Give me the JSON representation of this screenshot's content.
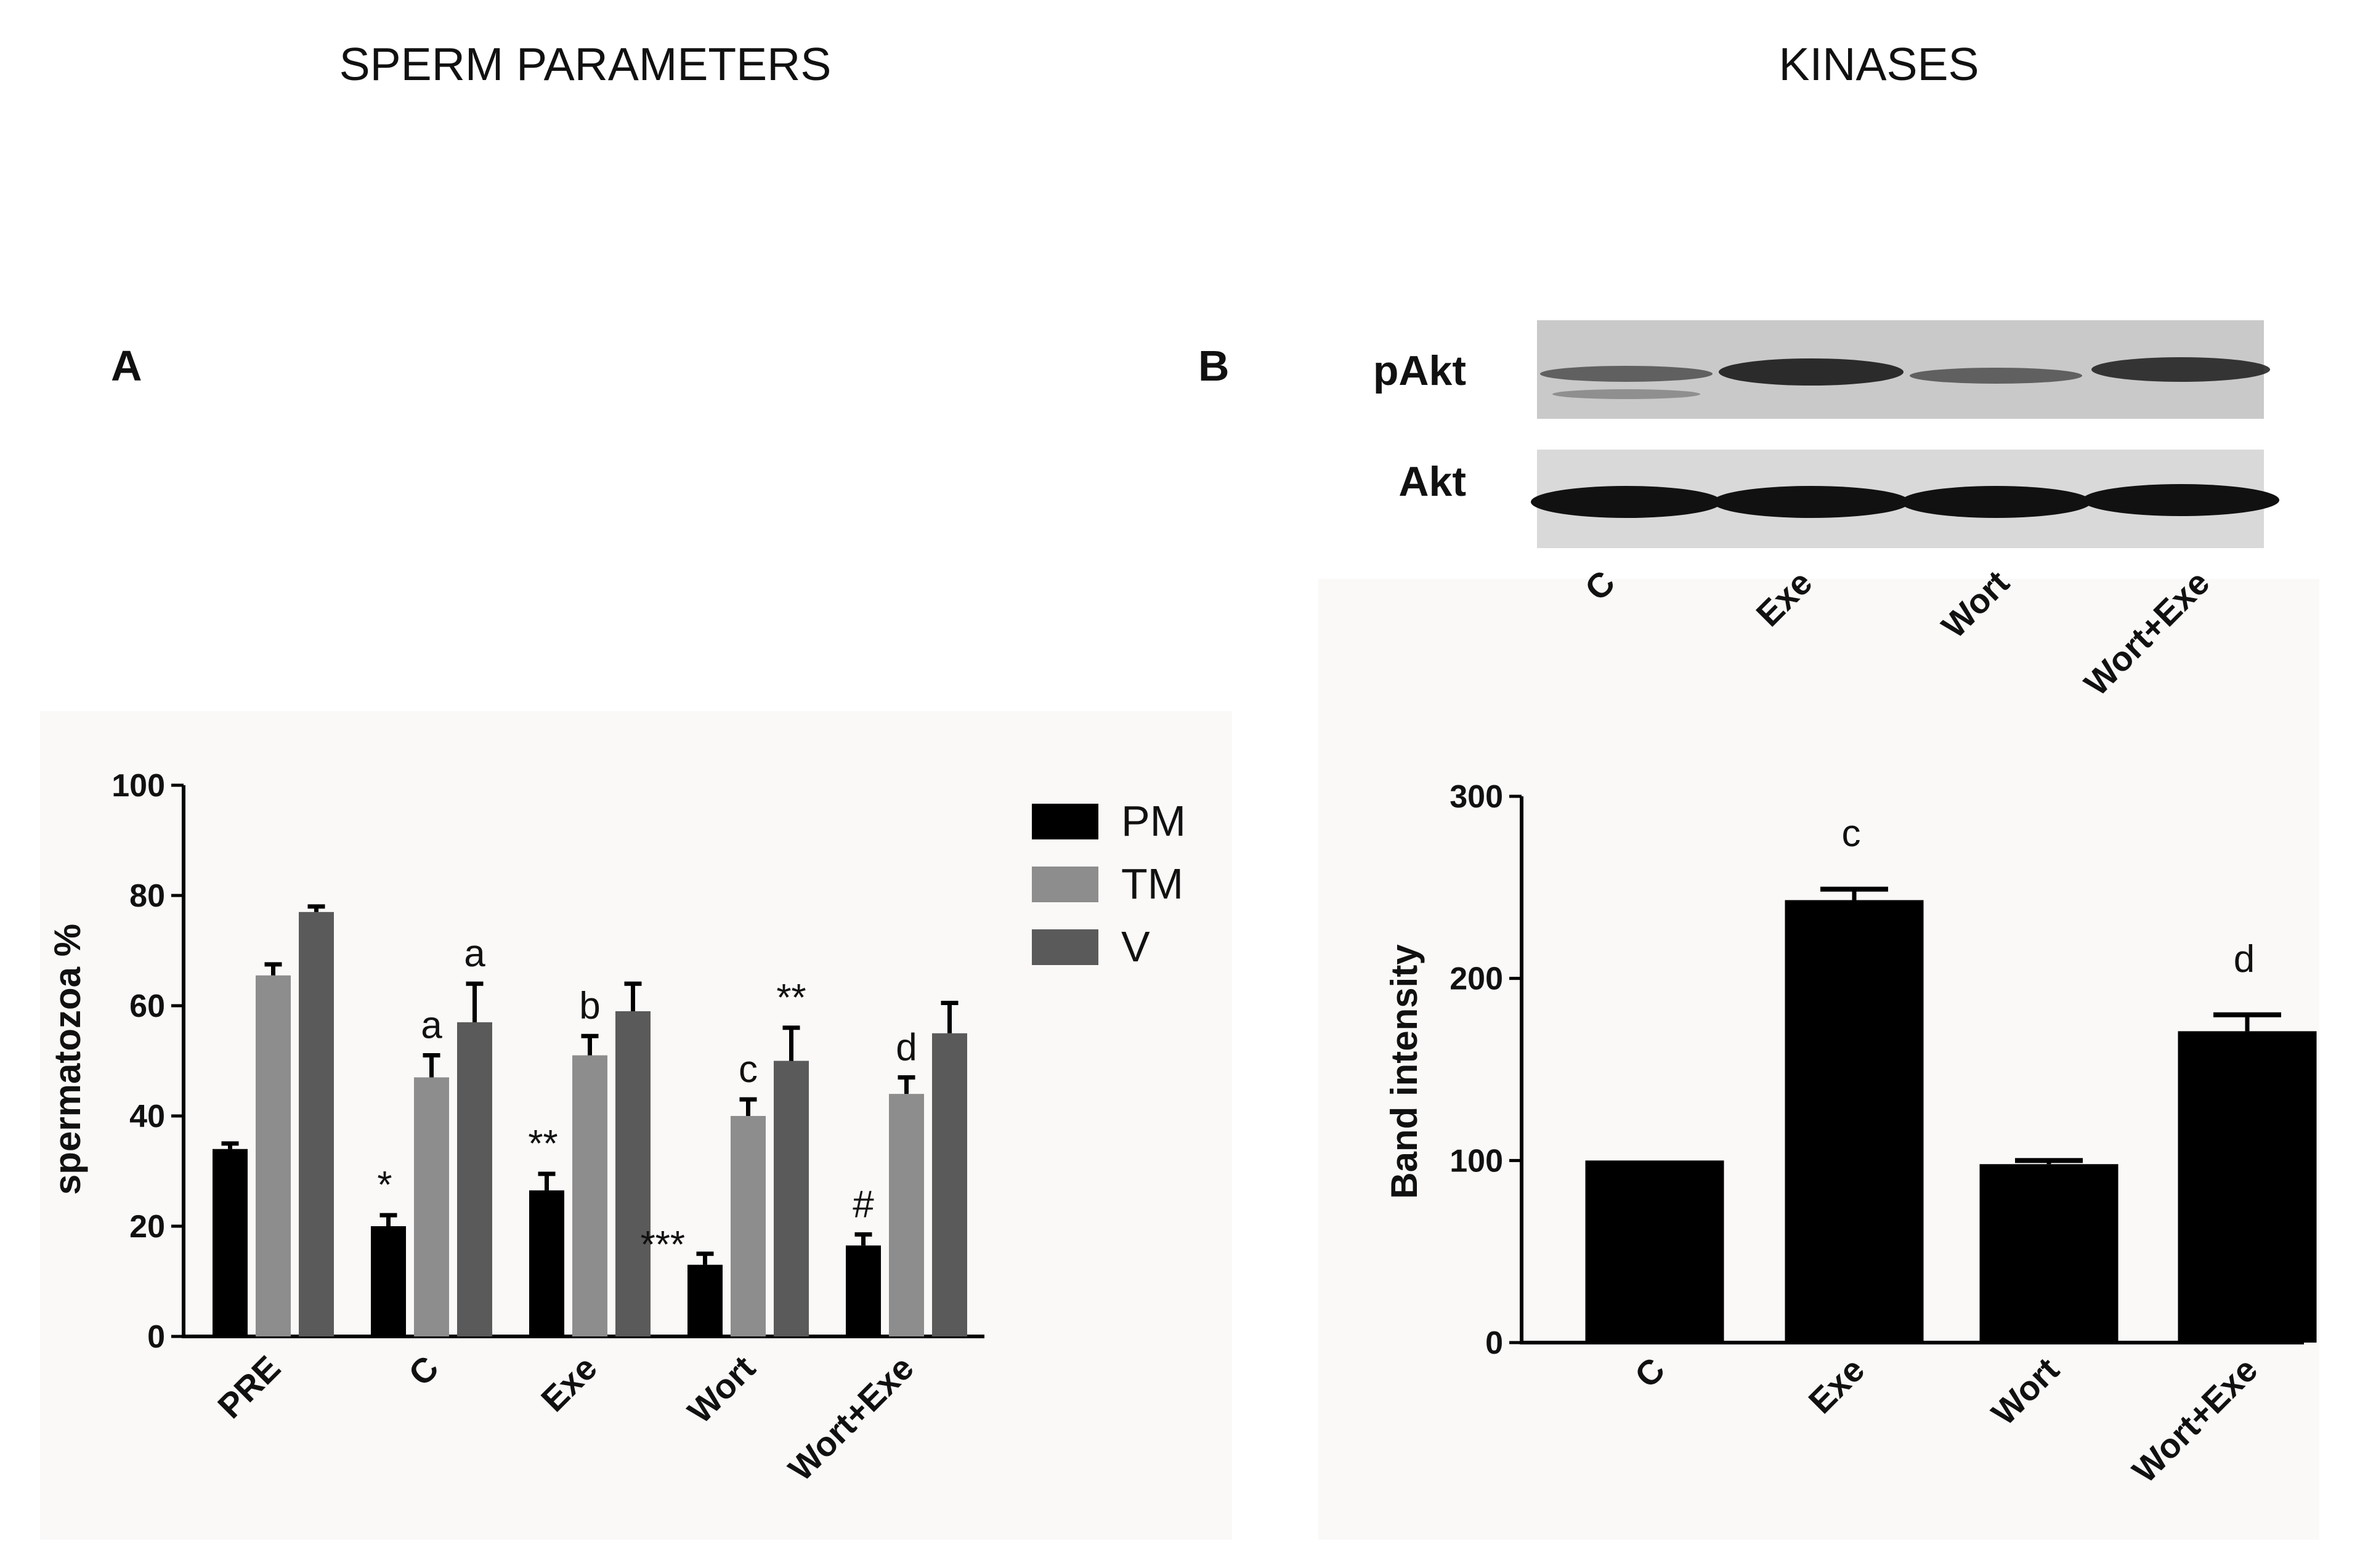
{
  "headers": {
    "left": "SPERM PARAMETERS",
    "right": "KINASES"
  },
  "panels": {
    "a": "A",
    "b": "B"
  },
  "blot": {
    "rows": [
      "pAkt",
      "Akt"
    ],
    "lanes": [
      "C",
      "Exe",
      "Wort",
      "Wort+Exe"
    ]
  },
  "chart_data": [
    {
      "type": "bar",
      "panel": "A",
      "ylabel": "spermatozoa %",
      "ylim": [
        0,
        100
      ],
      "yticks": [
        "0",
        "20",
        "40",
        "60",
        "80",
        "100"
      ],
      "categories": [
        "PRE",
        "C",
        "Exe",
        "Wort",
        "Wort+Exe"
      ],
      "legend_position": "top-right",
      "series": [
        {
          "name": "PM",
          "color": "#000000",
          "values": [
            34,
            20,
            26.5,
            13,
            16.5
          ],
          "errors": [
            1,
            2,
            3,
            2,
            2
          ],
          "annotations": [
            "",
            "*",
            "**",
            "***",
            "#"
          ]
        },
        {
          "name": "TM",
          "color": "#8d8d8d",
          "values": [
            65.5,
            47,
            51,
            40,
            44
          ],
          "errors": [
            2,
            4,
            3.5,
            3,
            3
          ],
          "annotations": [
            "",
            "a",
            "b",
            "c",
            "d"
          ]
        },
        {
          "name": "V",
          "color": "#5a5a5a",
          "values": [
            77,
            57,
            59,
            50,
            55
          ],
          "errors": [
            1,
            7,
            5,
            6,
            5.5
          ],
          "annotations": [
            "",
            "a",
            "",
            "**",
            ""
          ]
        }
      ]
    },
    {
      "type": "bar",
      "panel": "B",
      "ylabel": "Band intensity",
      "ylim": [
        0,
        300
      ],
      "yticks": [
        "0",
        "100",
        "200",
        "300"
      ],
      "categories": [
        "C",
        "Exe",
        "Wort",
        "Wort+Exe"
      ],
      "series": [
        {
          "color": "#000000",
          "values": [
            100,
            243,
            98,
            171
          ],
          "errors": [
            0,
            6,
            2,
            9
          ],
          "annotations": [
            "",
            "c",
            "",
            "d"
          ]
        }
      ]
    }
  ]
}
